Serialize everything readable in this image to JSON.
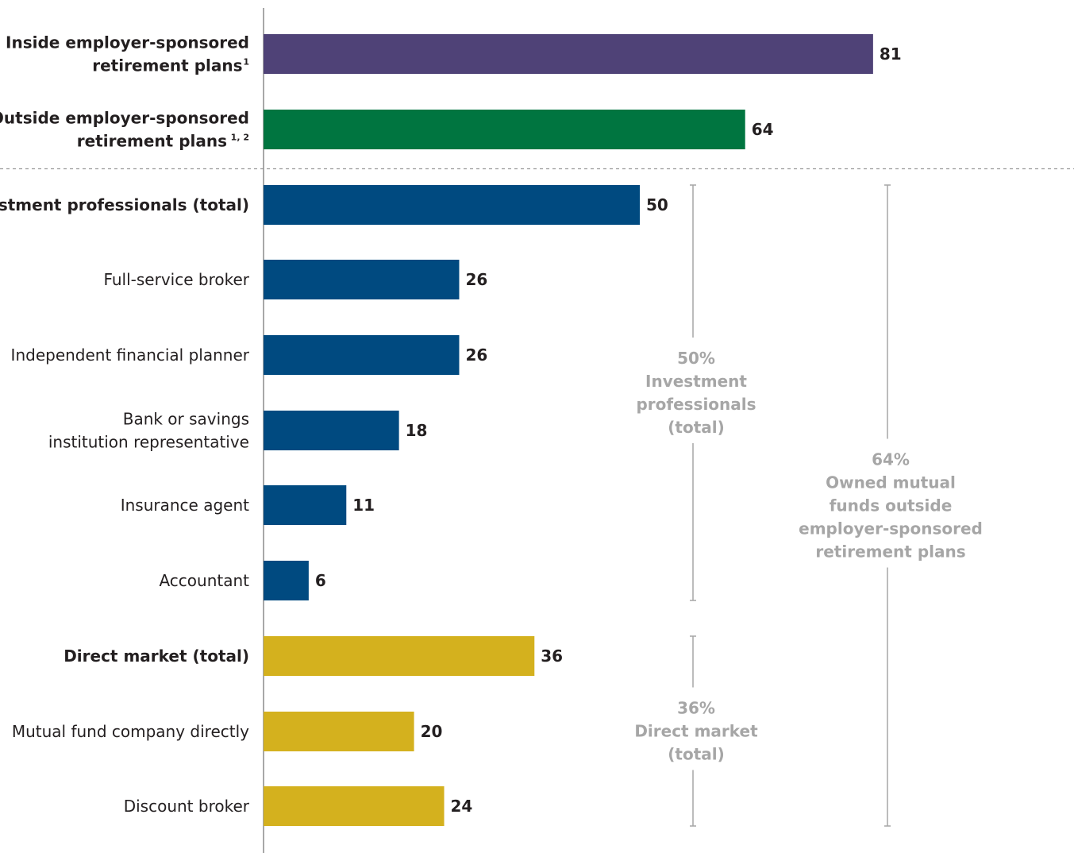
{
  "chart_data": {
    "type": "bar",
    "orientation": "horizontal",
    "xlim": [
      0,
      100
    ],
    "grid": false,
    "categories": [
      {
        "lines": [
          "Inside employer-sponsored",
          "retirement plans"
        ],
        "sup": "1",
        "bold": true,
        "value": 81,
        "group": "inside"
      },
      {
        "lines": [
          "Outside employer-sponsored",
          "retirement plans"
        ],
        "sup": "1, 2",
        "bold": true,
        "value": 64,
        "group": "outside"
      },
      {
        "lines": [
          "Investment professionals (total)"
        ],
        "bold": true,
        "value": 50,
        "group": "professional"
      },
      {
        "lines": [
          "Full-service broker"
        ],
        "bold": false,
        "value": 26,
        "group": "professional"
      },
      {
        "lines": [
          "Independent financial planner"
        ],
        "bold": false,
        "value": 26,
        "group": "professional"
      },
      {
        "lines": [
          "Bank or savings",
          "institution representative"
        ],
        "bold": false,
        "value": 18,
        "group": "professional"
      },
      {
        "lines": [
          "Insurance agent"
        ],
        "bold": false,
        "value": 11,
        "group": "professional"
      },
      {
        "lines": [
          "Accountant"
        ],
        "bold": false,
        "value": 6,
        "group": "professional"
      },
      {
        "lines": [
          "Direct market (total)"
        ],
        "bold": true,
        "value": 36,
        "group": "direct"
      },
      {
        "lines": [
          "Mutual fund company directly"
        ],
        "bold": false,
        "value": 20,
        "group": "direct"
      },
      {
        "lines": [
          "Discount broker"
        ],
        "bold": false,
        "value": 24,
        "group": "direct"
      }
    ],
    "colors": {
      "inside": "#4f4277",
      "outside": "#007540",
      "professional": "#004a80",
      "direct": "#d4b11e",
      "bracket": "#a6a6a6",
      "axis": "#8c8c8c"
    },
    "brackets": [
      {
        "lines": [
          "50%",
          "Investment",
          "professionals",
          "(total)"
        ],
        "from_row": 2,
        "to_row": 7,
        "column": "inner"
      },
      {
        "lines": [
          "36%",
          "Direct market",
          "(total)"
        ],
        "from_row": 8,
        "to_row": 10,
        "column": "inner"
      },
      {
        "lines": [
          "64%",
          "Owned mutual",
          "funds outside",
          "employer-sponsored",
          "retirement plans"
        ],
        "from_row": 2,
        "to_row": 10,
        "column": "outer"
      }
    ],
    "divider_after_row": 1
  }
}
